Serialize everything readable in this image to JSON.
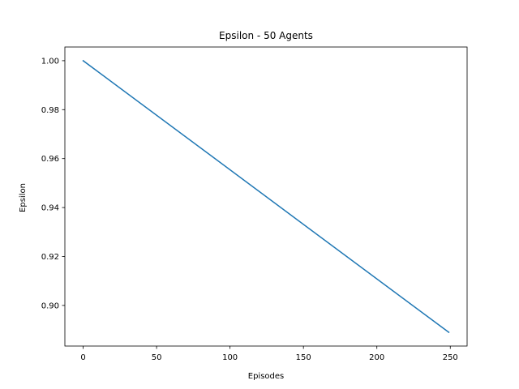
{
  "chart_data": {
    "type": "line",
    "title": "Epsilon - 50 Agents",
    "xlabel": "Episodes",
    "ylabel": "Epsilon",
    "xlim": [
      -12.45,
      261.45
    ],
    "ylim": [
      0.8834,
      1.0056
    ],
    "xticks": [
      0,
      50,
      100,
      150,
      200,
      250
    ],
    "xtick_labels": [
      "0",
      "50",
      "100",
      "150",
      "200",
      "250"
    ],
    "yticks": [
      0.9,
      0.92,
      0.94,
      0.96,
      0.98,
      1.0
    ],
    "ytick_labels": [
      "0.90",
      "0.92",
      "0.94",
      "0.96",
      "0.98",
      "1.00"
    ],
    "grid": false,
    "series": [
      {
        "color": "#1f77b4",
        "x": [
          0,
          249
        ],
        "y": [
          1.0,
          0.889
        ]
      }
    ]
  }
}
